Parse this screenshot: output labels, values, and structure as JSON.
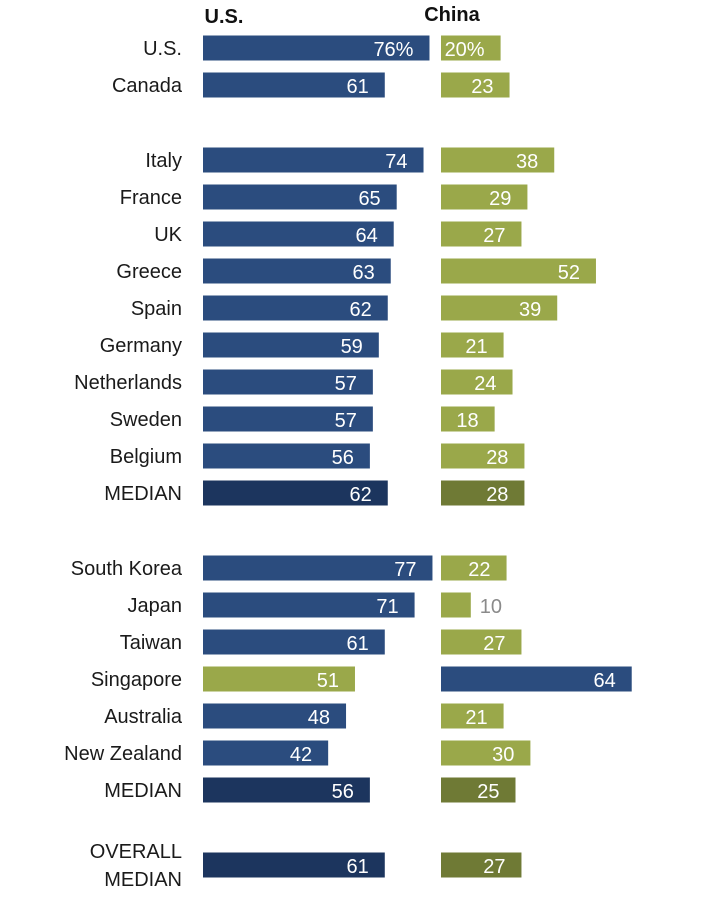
{
  "chart_data": {
    "type": "bar",
    "columns": [
      "U.S.",
      "China"
    ],
    "colors": {
      "blue": "#2b4c7e",
      "blue_median": "#1c355e",
      "green": "#9aa84a",
      "green_median": "#6f7a35",
      "label_light": "#ffffff",
      "label_outside": "#8a8a8a"
    },
    "rows": [
      {
        "label": "U.S.",
        "us": 76,
        "us_text": "76%",
        "china": 20,
        "china_text": "20%",
        "group": 0
      },
      {
        "label": "Canada",
        "us": 61,
        "china": 23,
        "group": 0
      },
      {
        "label": "Italy",
        "us": 74,
        "china": 38,
        "group": 1
      },
      {
        "label": "France",
        "us": 65,
        "china": 29,
        "group": 1
      },
      {
        "label": "UK",
        "us": 64,
        "china": 27,
        "group": 1
      },
      {
        "label": "Greece",
        "us": 63,
        "china": 52,
        "group": 1
      },
      {
        "label": "Spain",
        "us": 62,
        "china": 39,
        "group": 1
      },
      {
        "label": "Germany",
        "us": 59,
        "china": 21,
        "group": 1
      },
      {
        "label": "Netherlands",
        "us": 57,
        "china": 24,
        "group": 1
      },
      {
        "label": "Sweden",
        "us": 57,
        "china": 18,
        "group": 1
      },
      {
        "label": "Belgium",
        "us": 56,
        "china": 28,
        "group": 1
      },
      {
        "label": "MEDIAN",
        "us": 62,
        "china": 28,
        "group": 1,
        "median": true
      },
      {
        "label": "South Korea",
        "us": 77,
        "china": 22,
        "group": 2
      },
      {
        "label": "Japan",
        "us": 71,
        "china": 10,
        "group": 2
      },
      {
        "label": "Taiwan",
        "us": 61,
        "china": 27,
        "group": 2
      },
      {
        "label": "Singapore",
        "us": 51,
        "china": 64,
        "group": 2,
        "swap_colors": true
      },
      {
        "label": "Australia",
        "us": 48,
        "china": 21,
        "group": 2
      },
      {
        "label": "New Zealand",
        "us": 42,
        "china": 30,
        "group": 2
      },
      {
        "label": "MEDIAN",
        "us": 56,
        "china": 25,
        "group": 2,
        "median": true
      },
      {
        "label": "OVERALL MEDIAN",
        "label_lines": [
          "OVERALL",
          "MEDIAN"
        ],
        "us": 61,
        "china": 27,
        "group": 3,
        "median": true
      }
    ]
  }
}
